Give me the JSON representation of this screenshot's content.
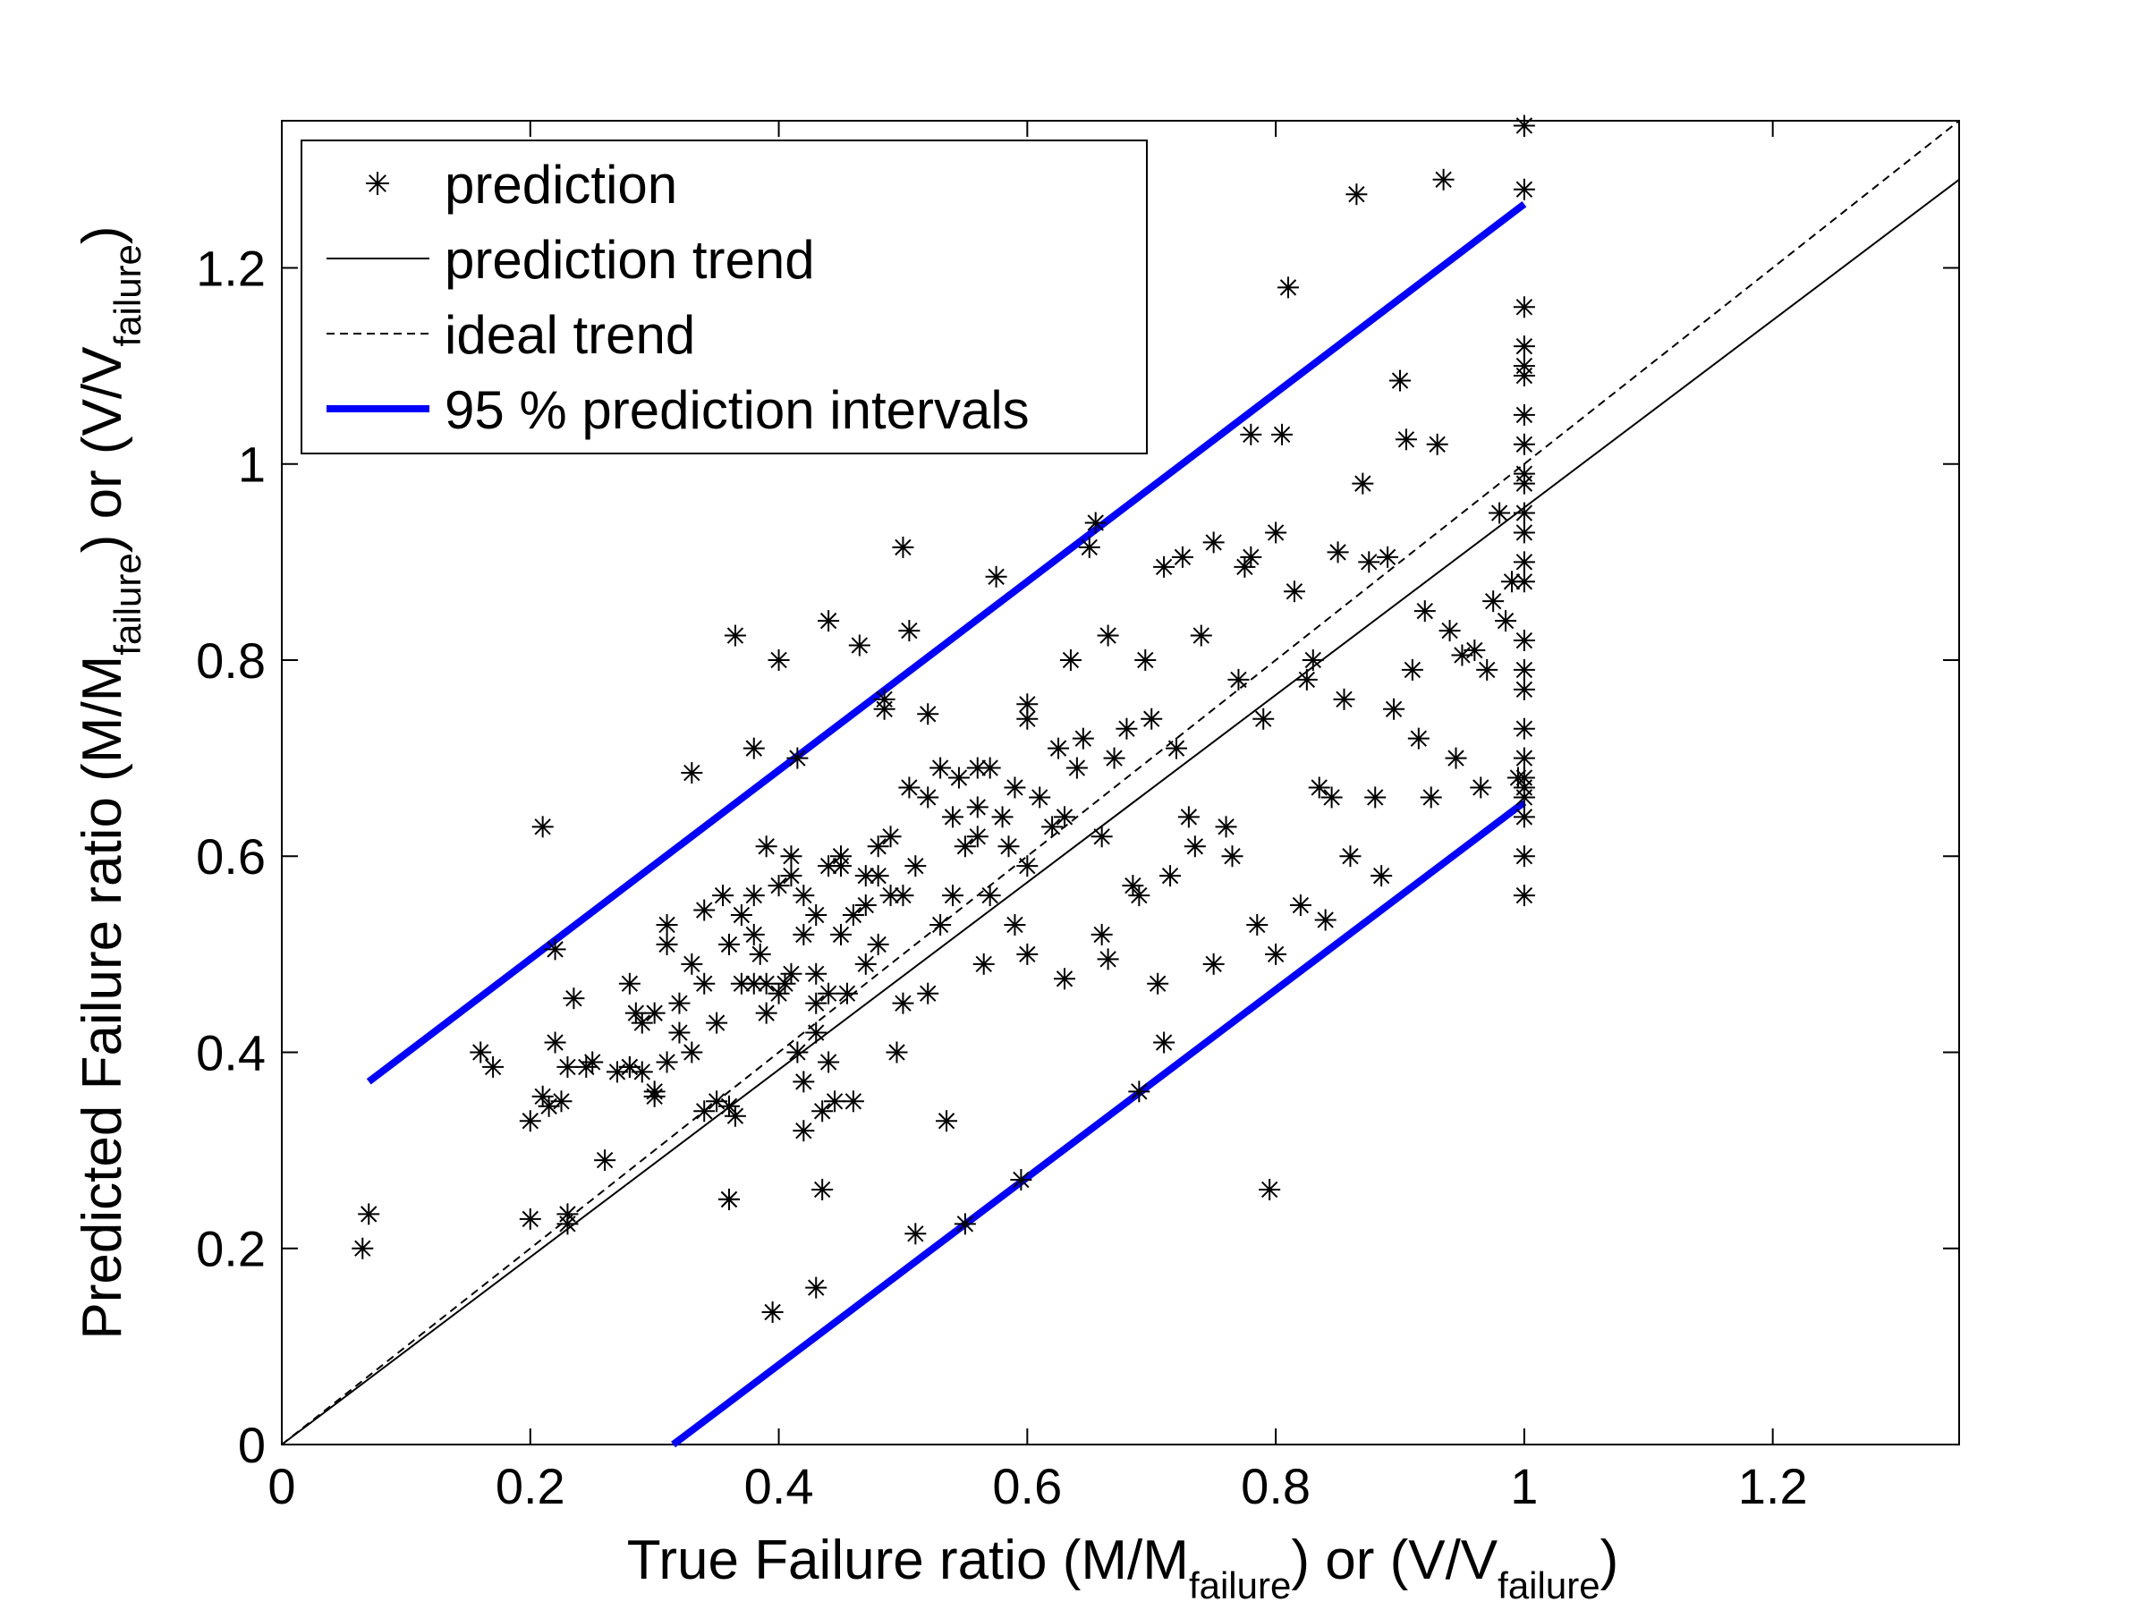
{
  "chart_data": {
    "type": "scatter",
    "xlabel": {
      "parts": [
        "True  Failure ratio (M/M",
        "failure",
        ") or (V/V",
        "failure",
        ")"
      ]
    },
    "ylabel": {
      "parts": [
        "Predicted  Failure ratio (M/M",
        "failure",
        ") or (V/V",
        "failure",
        ")"
      ]
    },
    "xlim": [
      0,
      1.35
    ],
    "ylim": [
      0,
      1.35
    ],
    "xticks": [
      0,
      0.2,
      0.4,
      0.6,
      0.8,
      1,
      1.2
    ],
    "xtick_labels": [
      "0",
      "0.2",
      "0.4",
      "0.6",
      "0.8",
      "1",
      "1.2"
    ],
    "yticks": [
      0,
      0.2,
      0.4,
      0.6,
      0.8,
      1,
      1.2
    ],
    "ytick_labels": [
      "0",
      "0.2",
      "0.4",
      "0.6",
      "0.8",
      "1",
      "1.2"
    ],
    "grid": false,
    "legend_position": "top-left",
    "legend": [
      {
        "label": "prediction",
        "style": "marker-asterisk",
        "color": "#000000"
      },
      {
        "label": "prediction trend",
        "style": "solid",
        "color": "#000000"
      },
      {
        "label": "ideal trend",
        "style": "dashed",
        "color": "#000000"
      },
      {
        "label": "95 % prediction intervals",
        "style": "thick",
        "color": "#0000ff"
      }
    ],
    "lines": [
      {
        "name": "prediction trend",
        "x": [
          0,
          1.35
        ],
        "y": [
          0,
          1.29
        ],
        "style": "solid",
        "color": "#000000"
      },
      {
        "name": "ideal trend",
        "x": [
          0,
          1.35
        ],
        "y": [
          0,
          1.35
        ],
        "style": "dashed",
        "color": "#000000"
      },
      {
        "name": "95 % prediction intervals",
        "x": [
          0.07,
          1
        ],
        "y": [
          0.37,
          1.265
        ],
        "style": "thick",
        "color": "#0000ff"
      },
      {
        "name": "95 % prediction intervals",
        "x": [
          0.315,
          1
        ],
        "y": [
          0,
          0.655
        ],
        "style": "thick",
        "color": "#0000ff"
      }
    ],
    "series": [
      {
        "name": "prediction",
        "marker": "asterisk",
        "color": "#000000",
        "points": [
          [
            0.065,
            0.2
          ],
          [
            0.07,
            0.235
          ],
          [
            0.16,
            0.4
          ],
          [
            0.17,
            0.385
          ],
          [
            0.2,
            0.33
          ],
          [
            0.2,
            0.23
          ],
          [
            0.21,
            0.355
          ],
          [
            0.21,
            0.63
          ],
          [
            0.215,
            0.345
          ],
          [
            0.22,
            0.41
          ],
          [
            0.22,
            0.505
          ],
          [
            0.225,
            0.35
          ],
          [
            0.23,
            0.385
          ],
          [
            0.23,
            0.235
          ],
          [
            0.23,
            0.225
          ],
          [
            0.235,
            0.455
          ],
          [
            0.245,
            0.385
          ],
          [
            0.25,
            0.39
          ],
          [
            0.26,
            0.29
          ],
          [
            0.27,
            0.38
          ],
          [
            0.28,
            0.47
          ],
          [
            0.28,
            0.385
          ],
          [
            0.28,
            0.385
          ],
          [
            0.285,
            0.44
          ],
          [
            0.29,
            0.38
          ],
          [
            0.29,
            0.43
          ],
          [
            0.3,
            0.355
          ],
          [
            0.3,
            0.36
          ],
          [
            0.3,
            0.44
          ],
          [
            0.31,
            0.39
          ],
          [
            0.31,
            0.53
          ],
          [
            0.31,
            0.51
          ],
          [
            0.32,
            0.45
          ],
          [
            0.32,
            0.42
          ],
          [
            0.33,
            0.4
          ],
          [
            0.33,
            0.685
          ],
          [
            0.33,
            0.49
          ],
          [
            0.34,
            0.47
          ],
          [
            0.34,
            0.545
          ],
          [
            0.34,
            0.34
          ],
          [
            0.35,
            0.43
          ],
          [
            0.35,
            0.35
          ],
          [
            0.355,
            0.56
          ],
          [
            0.36,
            0.25
          ],
          [
            0.36,
            0.25
          ],
          [
            0.36,
            0.51
          ],
          [
            0.36,
            0.345
          ],
          [
            0.365,
            0.825
          ],
          [
            0.365,
            0.335
          ],
          [
            0.37,
            0.54
          ],
          [
            0.37,
            0.47
          ],
          [
            0.38,
            0.47
          ],
          [
            0.38,
            0.56
          ],
          [
            0.38,
            0.71
          ],
          [
            0.38,
            0.52
          ],
          [
            0.385,
            0.5
          ],
          [
            0.39,
            0.47
          ],
          [
            0.39,
            0.61
          ],
          [
            0.39,
            0.44
          ],
          [
            0.395,
            0.135
          ],
          [
            0.4,
            0.57
          ],
          [
            0.4,
            0.8
          ],
          [
            0.4,
            0.46
          ],
          [
            0.405,
            0.47
          ],
          [
            0.41,
            0.6
          ],
          [
            0.41,
            0.58
          ],
          [
            0.41,
            0.48
          ],
          [
            0.415,
            0.4
          ],
          [
            0.415,
            0.7
          ],
          [
            0.42,
            0.32
          ],
          [
            0.42,
            0.37
          ],
          [
            0.42,
            0.56
          ],
          [
            0.42,
            0.52
          ],
          [
            0.43,
            0.48
          ],
          [
            0.43,
            0.45
          ],
          [
            0.43,
            0.42
          ],
          [
            0.43,
            0.54
          ],
          [
            0.43,
            0.16
          ],
          [
            0.435,
            0.26
          ],
          [
            0.435,
            0.34
          ],
          [
            0.44,
            0.84
          ],
          [
            0.44,
            0.39
          ],
          [
            0.44,
            0.59
          ],
          [
            0.44,
            0.46
          ],
          [
            0.445,
            0.35
          ],
          [
            0.45,
            0.6
          ],
          [
            0.45,
            0.59
          ],
          [
            0.45,
            0.52
          ],
          [
            0.455,
            0.46
          ],
          [
            0.46,
            0.35
          ],
          [
            0.46,
            0.54
          ],
          [
            0.465,
            0.815
          ],
          [
            0.47,
            0.55
          ],
          [
            0.47,
            0.58
          ],
          [
            0.47,
            0.49
          ],
          [
            0.48,
            0.61
          ],
          [
            0.48,
            0.58
          ],
          [
            0.48,
            0.51
          ],
          [
            0.485,
            0.76
          ],
          [
            0.485,
            0.75
          ],
          [
            0.49,
            0.56
          ],
          [
            0.49,
            0.62
          ],
          [
            0.495,
            0.4
          ],
          [
            0.5,
            0.915
          ],
          [
            0.5,
            0.45
          ],
          [
            0.5,
            0.56
          ],
          [
            0.505,
            0.83
          ],
          [
            0.505,
            0.67
          ],
          [
            0.51,
            0.59
          ],
          [
            0.51,
            0.215
          ],
          [
            0.52,
            0.745
          ],
          [
            0.52,
            0.46
          ],
          [
            0.52,
            0.66
          ],
          [
            0.53,
            0.69
          ],
          [
            0.53,
            0.53
          ],
          [
            0.535,
            0.33
          ],
          [
            0.54,
            0.64
          ],
          [
            0.54,
            0.56
          ],
          [
            0.545,
            0.68
          ],
          [
            0.55,
            0.225
          ],
          [
            0.55,
            0.61
          ],
          [
            0.56,
            0.62
          ],
          [
            0.56,
            0.65
          ],
          [
            0.56,
            0.69
          ],
          [
            0.565,
            0.49
          ],
          [
            0.57,
            0.56
          ],
          [
            0.57,
            0.69
          ],
          [
            0.575,
            0.885
          ],
          [
            0.58,
            0.64
          ],
          [
            0.585,
            0.61
          ],
          [
            0.59,
            0.67
          ],
          [
            0.59,
            0.53
          ],
          [
            0.595,
            0.27
          ],
          [
            0.6,
            0.755
          ],
          [
            0.6,
            0.74
          ],
          [
            0.6,
            0.59
          ],
          [
            0.6,
            0.5
          ],
          [
            0.61,
            0.66
          ],
          [
            0.62,
            0.63
          ],
          [
            0.625,
            0.71
          ],
          [
            0.63,
            0.475
          ],
          [
            0.63,
            0.64
          ],
          [
            0.635,
            0.8
          ],
          [
            0.64,
            0.69
          ],
          [
            0.645,
            0.72
          ],
          [
            0.65,
            0.915
          ],
          [
            0.655,
            0.94
          ],
          [
            0.66,
            0.52
          ],
          [
            0.66,
            0.62
          ],
          [
            0.665,
            0.495
          ],
          [
            0.665,
            0.825
          ],
          [
            0.67,
            0.7
          ],
          [
            0.68,
            0.73
          ],
          [
            0.685,
            0.57
          ],
          [
            0.69,
            0.36
          ],
          [
            0.69,
            0.56
          ],
          [
            0.695,
            0.8
          ],
          [
            0.7,
            0.74
          ],
          [
            0.705,
            0.47
          ],
          [
            0.71,
            0.895
          ],
          [
            0.71,
            0.41
          ],
          [
            0.715,
            0.58
          ],
          [
            0.72,
            0.71
          ],
          [
            0.725,
            0.905
          ],
          [
            0.73,
            0.64
          ],
          [
            0.735,
            0.61
          ],
          [
            0.74,
            0.825
          ],
          [
            0.75,
            0.92
          ],
          [
            0.75,
            0.49
          ],
          [
            0.76,
            0.63
          ],
          [
            0.765,
            0.6
          ],
          [
            0.77,
            0.78
          ],
          [
            0.775,
            0.895
          ],
          [
            0.78,
            1.03
          ],
          [
            0.78,
            0.905
          ],
          [
            0.785,
            0.53
          ],
          [
            0.79,
            0.74
          ],
          [
            0.795,
            0.26
          ],
          [
            0.8,
            0.93
          ],
          [
            0.8,
            0.5
          ],
          [
            0.805,
            1.03
          ],
          [
            0.81,
            1.18
          ],
          [
            0.815,
            0.87
          ],
          [
            0.82,
            0.55
          ],
          [
            0.825,
            0.78
          ],
          [
            0.83,
            0.8
          ],
          [
            0.835,
            0.67
          ],
          [
            0.84,
            0.535
          ],
          [
            0.845,
            0.66
          ],
          [
            0.85,
            0.91
          ],
          [
            0.855,
            0.76
          ],
          [
            0.86,
            0.6
          ],
          [
            0.865,
            1.275
          ],
          [
            0.87,
            0.98
          ],
          [
            0.875,
            0.9
          ],
          [
            0.88,
            0.66
          ],
          [
            0.885,
            0.58
          ],
          [
            0.89,
            0.905
          ],
          [
            0.895,
            0.75
          ],
          [
            0.9,
            1.085
          ],
          [
            0.905,
            1.025
          ],
          [
            0.91,
            0.79
          ],
          [
            0.915,
            0.72
          ],
          [
            0.92,
            0.85
          ],
          [
            0.925,
            0.66
          ],
          [
            0.93,
            1.02
          ],
          [
            0.935,
            1.29
          ],
          [
            0.94,
            0.83
          ],
          [
            0.945,
            0.7
          ],
          [
            0.95,
            0.805
          ],
          [
            0.96,
            0.81
          ],
          [
            0.965,
            0.67
          ],
          [
            0.97,
            0.79
          ],
          [
            0.975,
            0.86
          ],
          [
            0.98,
            0.95
          ],
          [
            0.985,
            0.84
          ],
          [
            0.99,
            0.88
          ],
          [
            0.995,
            0.68
          ],
          [
            1,
            1.345
          ],
          [
            1,
            1.28
          ],
          [
            1,
            1.16
          ],
          [
            1,
            1.12
          ],
          [
            1,
            1.1
          ],
          [
            1,
            1.09
          ],
          [
            1,
            1.05
          ],
          [
            1,
            1.02
          ],
          [
            1,
            0.99
          ],
          [
            1,
            0.98
          ],
          [
            1,
            0.95
          ],
          [
            1,
            0.93
          ],
          [
            1,
            0.9
          ],
          [
            1,
            0.88
          ],
          [
            1,
            0.82
          ],
          [
            1,
            0.79
          ],
          [
            1,
            0.77
          ],
          [
            1,
            0.73
          ],
          [
            1,
            0.7
          ],
          [
            1,
            0.68
          ],
          [
            1,
            0.67
          ],
          [
            1,
            0.66
          ],
          [
            1,
            0.64
          ],
          [
            1,
            0.6
          ],
          [
            1,
            0.56
          ]
        ]
      }
    ]
  }
}
